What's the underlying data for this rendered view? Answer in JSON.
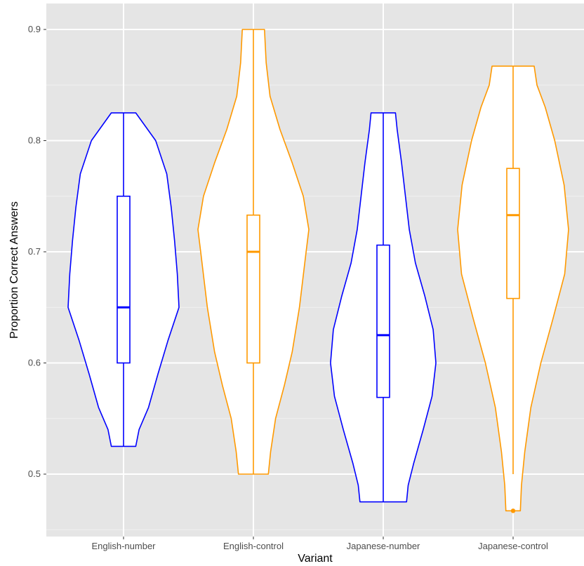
{
  "chart_data": {
    "type": "violin",
    "title": "",
    "xlabel": "Variant",
    "ylabel": "Proportion Correct Answers",
    "ylim": [
      0.45,
      0.93
    ],
    "yticks": [
      0.5,
      0.6,
      0.7,
      0.8,
      0.9
    ],
    "ytick_labels": [
      "0.5",
      "0.6",
      "0.7",
      "0.8",
      "0.9"
    ],
    "grid": true,
    "legend": "none",
    "categories": [
      "English-number",
      "English-control",
      "Japanese-number",
      "Japanese-control"
    ],
    "colors": {
      "number": "#0000ff",
      "control": "#ff9900",
      "panel_background": "#e5e5e5",
      "gridline": "#ffffff"
    },
    "series": [
      {
        "category": "English-number",
        "color": "#0000ff",
        "min": 0.525,
        "q1": 0.6,
        "median": 0.65,
        "q3": 0.75,
        "max": 0.825,
        "whisker_low": 0.525,
        "whisker_high": 0.825,
        "outliers": [],
        "density": [
          [
            0.525,
            0.22
          ],
          [
            0.54,
            0.28
          ],
          [
            0.56,
            0.45
          ],
          [
            0.59,
            0.62
          ],
          [
            0.62,
            0.8
          ],
          [
            0.65,
            1.0
          ],
          [
            0.68,
            0.97
          ],
          [
            0.71,
            0.92
          ],
          [
            0.74,
            0.86
          ],
          [
            0.77,
            0.78
          ],
          [
            0.8,
            0.58
          ],
          [
            0.825,
            0.22
          ]
        ]
      },
      {
        "category": "English-control",
        "color": "#ff9900",
        "min": 0.5,
        "q1": 0.6,
        "median": 0.7,
        "q3": 0.733,
        "max": 0.9,
        "whisker_low": 0.5,
        "whisker_high": 0.9,
        "outliers": [],
        "density": [
          [
            0.5,
            0.27
          ],
          [
            0.52,
            0.31
          ],
          [
            0.55,
            0.4
          ],
          [
            0.58,
            0.56
          ],
          [
            0.61,
            0.7
          ],
          [
            0.65,
            0.83
          ],
          [
            0.7,
            0.95
          ],
          [
            0.72,
            1.0
          ],
          [
            0.75,
            0.9
          ],
          [
            0.78,
            0.7
          ],
          [
            0.81,
            0.48
          ],
          [
            0.84,
            0.3
          ],
          [
            0.87,
            0.23
          ],
          [
            0.9,
            0.2
          ]
        ]
      },
      {
        "category": "Japanese-number",
        "color": "#0000ff",
        "min": 0.475,
        "q1": 0.569,
        "median": 0.625,
        "q3": 0.706,
        "max": 0.825,
        "whisker_low": 0.475,
        "whisker_high": 0.825,
        "outliers": [],
        "density": [
          [
            0.475,
            0.42
          ],
          [
            0.49,
            0.45
          ],
          [
            0.51,
            0.55
          ],
          [
            0.54,
            0.72
          ],
          [
            0.57,
            0.88
          ],
          [
            0.6,
            0.95
          ],
          [
            0.63,
            0.9
          ],
          [
            0.66,
            0.75
          ],
          [
            0.69,
            0.58
          ],
          [
            0.72,
            0.47
          ],
          [
            0.75,
            0.4
          ],
          [
            0.78,
            0.33
          ],
          [
            0.81,
            0.25
          ],
          [
            0.825,
            0.22
          ]
        ]
      },
      {
        "category": "Japanese-control",
        "color": "#ff9900",
        "min": 0.467,
        "q1": 0.658,
        "median": 0.733,
        "q3": 0.775,
        "max": 0.867,
        "whisker_low": 0.5,
        "whisker_high": 0.867,
        "outliers": [
          0.467
        ],
        "density": [
          [
            0.467,
            0.13
          ],
          [
            0.49,
            0.15
          ],
          [
            0.52,
            0.21
          ],
          [
            0.56,
            0.32
          ],
          [
            0.6,
            0.5
          ],
          [
            0.64,
            0.72
          ],
          [
            0.68,
            0.93
          ],
          [
            0.72,
            1.0
          ],
          [
            0.76,
            0.92
          ],
          [
            0.8,
            0.75
          ],
          [
            0.83,
            0.58
          ],
          [
            0.85,
            0.43
          ],
          [
            0.867,
            0.38
          ]
        ]
      }
    ]
  }
}
